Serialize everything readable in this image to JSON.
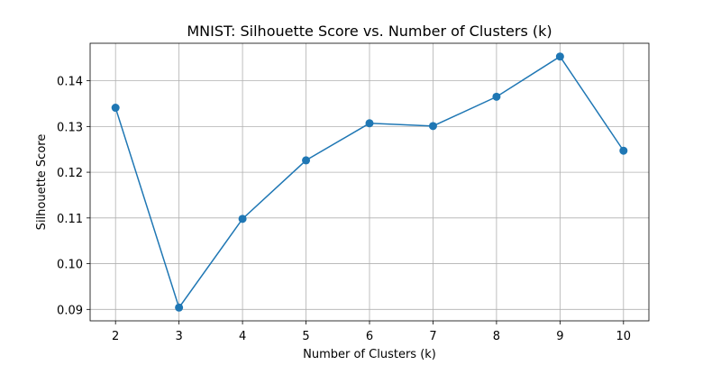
{
  "chart_data": {
    "type": "line",
    "title": "MNIST: Silhouette Score vs. Number of Clusters (k)",
    "xlabel": "Number of Clusters (k)",
    "ylabel": "Silhouette Score",
    "x": [
      2,
      3,
      4,
      5,
      6,
      7,
      8,
      9,
      10
    ],
    "series": [
      {
        "values": [
          0.1341,
          0.0904,
          0.1098,
          0.1226,
          0.1307,
          0.1301,
          0.1365,
          0.1453,
          0.1247
        ]
      }
    ],
    "xlim": [
      1.6,
      10.4
    ],
    "ylim": [
      0.0875,
      0.1482
    ],
    "x_ticks": [
      2,
      3,
      4,
      5,
      6,
      7,
      8,
      9,
      10
    ],
    "y_ticks": [
      0.09,
      0.1,
      0.11,
      0.12,
      0.13,
      0.14
    ],
    "y_tick_labels": [
      "0.09",
      "0.10",
      "0.11",
      "0.12",
      "0.13",
      "0.14"
    ],
    "grid": true,
    "marker": "circle",
    "colors": {
      "line": "#1f77b4",
      "grid": "#b0b0b0",
      "axes": "#000000"
    }
  }
}
